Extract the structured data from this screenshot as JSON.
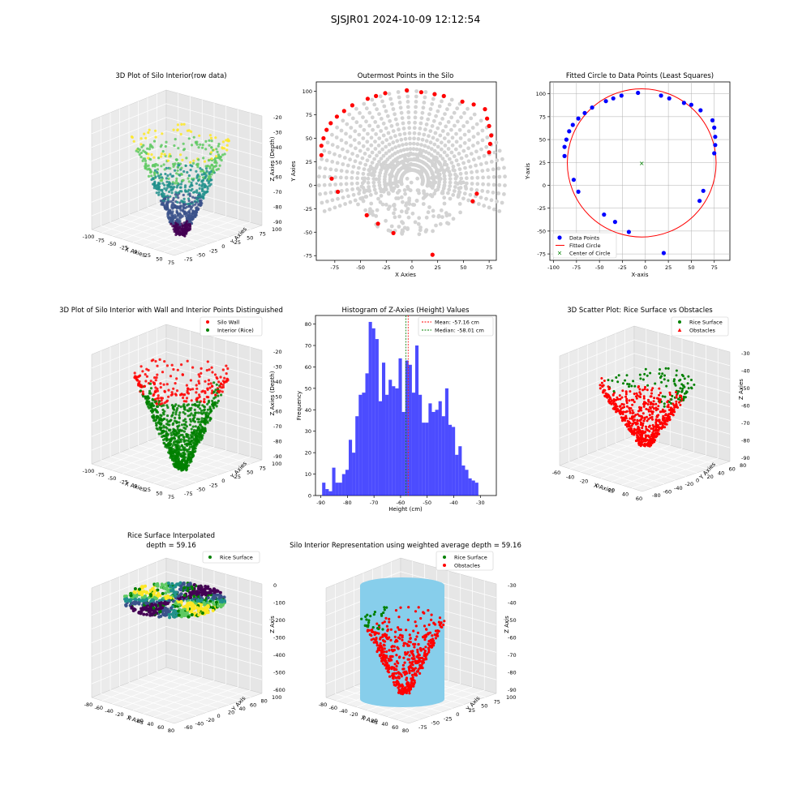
{
  "figure": {
    "suptitle": "SJSJR01 2024-10-09 12:12:54",
    "panel_titles": {
      "p1": "3D Plot of Silo Interior(row data)",
      "p2": "Outermost Points in the Silo",
      "p3": "Fitted Circle to Data Points (Least Squares)",
      "p4": "3D Plot of Silo Interior with Wall and Interior Points Distinguished",
      "p5": "Histogram of Z-Axies (Height) Values",
      "p6": "3D Scatter Plot: Rice Surface vs Obstacles",
      "p7_line1": "Rice Surface Interpolated",
      "p7_line2": "depth = 59.16",
      "p8": "Silo Interior Representation using weighted average depth = 59.16"
    },
    "axis_labels": {
      "x_axies": "X Axies",
      "y_axies": "Y Axies",
      "z_axies_depth": "Z Axies (Depth)",
      "z_axies": "Z Axies",
      "x_axis_3d": "X Axis",
      "y_axis_3d": "Y Axis",
      "z_axis_3d": "Z Axis",
      "p3_x": "X-axis",
      "p3_y": "Y-axis",
      "p5_x": "Height (cm)",
      "p5_y": "Frequency"
    },
    "legends": {
      "p3": [
        "Data Points",
        "Fitted Circle",
        "Center of Circle"
      ],
      "p4": [
        "Silo Wall",
        "Interior (Rice)"
      ],
      "p5": [
        "Mean: -57.16 cm",
        "Median: -58.01 cm"
      ],
      "p6": [
        "Rice Surface",
        "Obstacles"
      ],
      "p7": [
        "Rice Surface"
      ],
      "p8": [
        "Rice Surface",
        "Obstacles"
      ]
    },
    "colors": {
      "viridis": [
        "#440154",
        "#3b528b",
        "#21918c",
        "#5ec962",
        "#fde725"
      ],
      "gray_points": "#d3d3d3",
      "outer_points": "#ff0000",
      "blue_points": "#0000ff",
      "circle": "#ff0000",
      "center": "#008000",
      "hist": "#0000ff",
      "wall": "#ff0000",
      "rice": "#008000",
      "silo_fill": "#87ceeb"
    },
    "ticks": {
      "p1_x": [
        "-100",
        "-75",
        "-50",
        "-25",
        "0",
        "25",
        "50",
        "75"
      ],
      "p1_y": [
        "100",
        "75",
        "50",
        "25",
        "0",
        "-25",
        "-50",
        "-75"
      ],
      "p1_z": [
        "-20",
        "-30",
        "-40",
        "-50",
        "-60",
        "-70",
        "-80",
        "-90"
      ],
      "p6_x": [
        "-60",
        "-40",
        "-20",
        "0",
        "20",
        "40",
        "60"
      ],
      "p6_y": [
        "80",
        "60",
        "40",
        "20",
        "0",
        "-20",
        "-40",
        "-60",
        "-80"
      ],
      "p6_z": [
        "-30",
        "-40",
        "-50",
        "-60",
        "-70",
        "-80",
        "-90"
      ],
      "p7_x": [
        "-80",
        "-60",
        "-40",
        "-20",
        "0",
        "20",
        "40",
        "60",
        "80"
      ],
      "p7_y": [
        "100",
        "80",
        "60",
        "40",
        "20",
        "0",
        "-20",
        "-40",
        "-60"
      ],
      "p7_z": [
        "0",
        "-100",
        "-200",
        "-300",
        "-400",
        "-500",
        "-600"
      ],
      "p8_x": [
        "-80",
        "-60",
        "-40",
        "-20",
        "0",
        "20",
        "40",
        "60",
        "80"
      ],
      "p8_y": [
        "100",
        "75",
        "50",
        "25",
        "0",
        "-25",
        "-50",
        "-75"
      ],
      "p8_z": [
        "-30",
        "-40",
        "-50",
        "-60",
        "-70",
        "-80",
        "-90"
      ]
    }
  },
  "chart_data": [
    {
      "type": "scatter",
      "panel": "p2",
      "title": "Outermost Points in the Silo",
      "xlabel": "X Axies",
      "ylabel": "Y Axies",
      "xlim": [
        -93,
        82
      ],
      "ylim": [
        -80,
        110
      ],
      "xticks": [
        -75,
        -50,
        -25,
        0,
        25,
        50,
        75
      ],
      "yticks": [
        -75,
        -50,
        -25,
        0,
        25,
        50,
        75,
        100
      ],
      "outer_points": [
        [
          -88,
          32
        ],
        [
          -88,
          42
        ],
        [
          -86,
          50
        ],
        [
          -83,
          59
        ],
        [
          -79,
          66
        ],
        [
          -73,
          73
        ],
        [
          -66,
          79
        ],
        [
          -58,
          85
        ],
        [
          -43,
          92
        ],
        [
          -35,
          95
        ],
        [
          -26,
          98
        ],
        [
          -5,
          101
        ],
        [
          9,
          99
        ],
        [
          22,
          97
        ],
        [
          31,
          95
        ],
        [
          49,
          89
        ],
        [
          60,
          86
        ],
        [
          71,
          81
        ],
        [
          73,
          71
        ],
        [
          75,
          63
        ],
        [
          77,
          53
        ],
        [
          76,
          44
        ],
        [
          75,
          35
        ],
        [
          63,
          -9
        ],
        [
          59,
          -17
        ],
        [
          -72,
          -7
        ],
        [
          -78,
          7
        ],
        [
          -33,
          -41
        ],
        [
          -44,
          -32
        ],
        [
          -18,
          -51
        ],
        [
          20,
          -74
        ]
      ]
    },
    {
      "type": "scatter",
      "panel": "p3",
      "title": "Fitted Circle to Data Points (Least Squares)",
      "xlabel": "X-axis",
      "ylabel": "Y-axis",
      "xlim": [
        -104,
        92
      ],
      "ylim": [
        -82,
        113
      ],
      "xticks": [
        -100,
        -75,
        -50,
        -25,
        0,
        25,
        50,
        75
      ],
      "yticks": [
        -75,
        -50,
        -25,
        0,
        25,
        50,
        75,
        100
      ],
      "circle": {
        "cx": -4,
        "cy": 24.5,
        "r": 81
      },
      "center": [
        -4,
        24.5
      ],
      "data_points": [
        [
          -88,
          32
        ],
        [
          -88,
          42
        ],
        [
          -86,
          50
        ],
        [
          -83,
          59
        ],
        [
          -79,
          66
        ],
        [
          -73,
          73
        ],
        [
          -66,
          79
        ],
        [
          -58,
          85
        ],
        [
          -43,
          92
        ],
        [
          -35,
          95
        ],
        [
          -26,
          98
        ],
        [
          -8,
          101
        ],
        [
          17,
          98
        ],
        [
          26,
          95
        ],
        [
          42,
          90
        ],
        [
          50,
          88
        ],
        [
          60,
          82
        ],
        [
          73,
          71
        ],
        [
          75,
          63
        ],
        [
          76,
          53
        ],
        [
          76,
          44
        ],
        [
          75,
          35
        ],
        [
          63,
          -6
        ],
        [
          59,
          -17
        ],
        [
          -73,
          -7
        ],
        [
          -78,
          6
        ],
        [
          -45,
          -32
        ],
        [
          -33,
          -40
        ],
        [
          -18,
          -51
        ],
        [
          20,
          -74
        ]
      ]
    },
    {
      "type": "bar",
      "panel": "p5",
      "title": "Histogram of Z-Axies (Height) Values",
      "xlabel": "Height (cm)",
      "ylabel": "Frequency",
      "xlim": [
        -92,
        -24
      ],
      "ylim": [
        0,
        84
      ],
      "xticks": [
        -90,
        -80,
        -70,
        -60,
        -50,
        -40,
        -30
      ],
      "yticks": [
        0,
        10,
        20,
        30,
        40,
        50,
        60,
        70,
        80
      ],
      "bin_start": -89.5,
      "bin_width": 1.25,
      "values": [
        6,
        3,
        2,
        13,
        6,
        6,
        10,
        12,
        26,
        20,
        37,
        47,
        48,
        57,
        81,
        78,
        73,
        44,
        62,
        47,
        54,
        51,
        50,
        64,
        39,
        63,
        61,
        48,
        70,
        47,
        34,
        34,
        43,
        39,
        40,
        44,
        37,
        50,
        33,
        32,
        19,
        23,
        14,
        12,
        8,
        7,
        6
      ],
      "mean": -57.16,
      "median": -58.01
    }
  ]
}
